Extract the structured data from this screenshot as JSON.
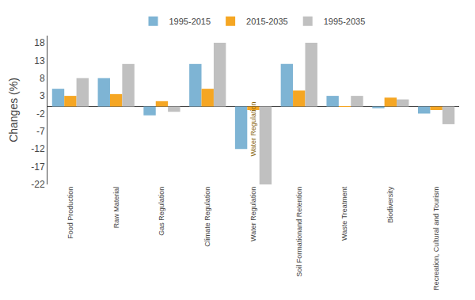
{
  "chart_data": {
    "type": "bar",
    "categories": [
      "Food Production",
      "Raw Material",
      "Gas Regulation",
      "Climate Regulation",
      "Water Regulation",
      "Soil Formationand Retention",
      "Waste Treatment",
      "Biodiversity",
      "Recreation, Cultural and Tourism"
    ],
    "series": [
      {
        "name": "1995-2015",
        "color": "#7EB4D4",
        "values": [
          5.0,
          8.0,
          -2.5,
          12.0,
          -12.0,
          12.0,
          3.0,
          -0.5,
          -2.0
        ]
      },
      {
        "name": "2015-2035",
        "color": "#F5A623",
        "values": [
          3.0,
          3.5,
          1.5,
          5.0,
          -1.0,
          4.5,
          0.1,
          2.5,
          -1.0
        ]
      },
      {
        "name": "1995-2035",
        "color": "#C0C0C0",
        "values": [
          8.0,
          12.0,
          -1.5,
          18.0,
          -22.0,
          18.0,
          3.0,
          2.0,
          -5.0
        ]
      }
    ],
    "ylabel": "Changes (%)",
    "ylim": [
      -22,
      20
    ],
    "yticks": [
      -22,
      -17,
      -12,
      -7,
      -2,
      3,
      8,
      13,
      18
    ],
    "annotations": [
      {
        "text": "Water Regulation",
        "x": "Water Regulation",
        "y": -6.5,
        "color": "#8B6914"
      }
    ],
    "grid": false,
    "legend": "top"
  }
}
